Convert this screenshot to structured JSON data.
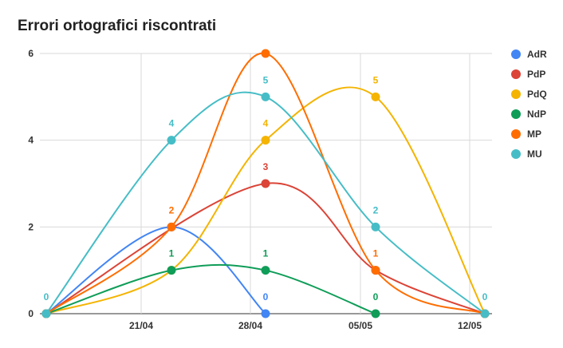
{
  "chart_data": {
    "type": "line",
    "title": "Errori ortografici riscontrati",
    "xlabel": "",
    "ylabel": "",
    "x_tick_labels": [
      "21/04",
      "28/04",
      "05/05",
      "12/05"
    ],
    "y_tick_labels": [
      "0",
      "2",
      "4",
      "6"
    ],
    "ylim": [
      0,
      6
    ],
    "grid": true,
    "legend_position": "right",
    "smooth": true,
    "series": [
      {
        "name": "AdR",
        "color": "#4285F4",
        "values": [
          0,
          2,
          0,
          null,
          null
        ]
      },
      {
        "name": "PdP",
        "color": "#DB4437",
        "values": [
          0,
          null,
          3,
          1,
          0
        ]
      },
      {
        "name": "PdQ",
        "color": "#F4B400",
        "values": [
          0,
          1,
          4,
          5,
          0
        ]
      },
      {
        "name": "NdP",
        "color": "#0F9D58",
        "values": [
          0,
          1,
          1,
          0,
          null
        ]
      },
      {
        "name": "MP",
        "color": "#FF6D00",
        "values": [
          0,
          2,
          6,
          1,
          0
        ]
      },
      {
        "name": "MU",
        "color": "#46BDC6",
        "values": [
          0,
          4,
          5,
          2,
          0
        ]
      }
    ],
    "data_labels": [
      {
        "series": "MU",
        "point": 0,
        "text": "0"
      },
      {
        "series": "MU",
        "point": 1,
        "text": "4"
      },
      {
        "series": "MP",
        "point": 1,
        "text": "2"
      },
      {
        "series": "NdP",
        "point": 1,
        "text": "1"
      },
      {
        "series": "MU",
        "point": 2,
        "text": "5"
      },
      {
        "series": "PdQ",
        "point": 2,
        "text": "4"
      },
      {
        "series": "PdP",
        "point": 2,
        "text": "3"
      },
      {
        "series": "NdP",
        "point": 2,
        "text": "1"
      },
      {
        "series": "AdR",
        "point": 2,
        "text": "0"
      },
      {
        "series": "PdQ",
        "point": 3,
        "text": "5"
      },
      {
        "series": "MU",
        "point": 3,
        "text": "2"
      },
      {
        "series": "MP",
        "point": 3,
        "text": "1"
      },
      {
        "series": "NdP",
        "point": 3,
        "text": "0"
      },
      {
        "series": "MU",
        "point": 4,
        "text": "0"
      }
    ]
  }
}
